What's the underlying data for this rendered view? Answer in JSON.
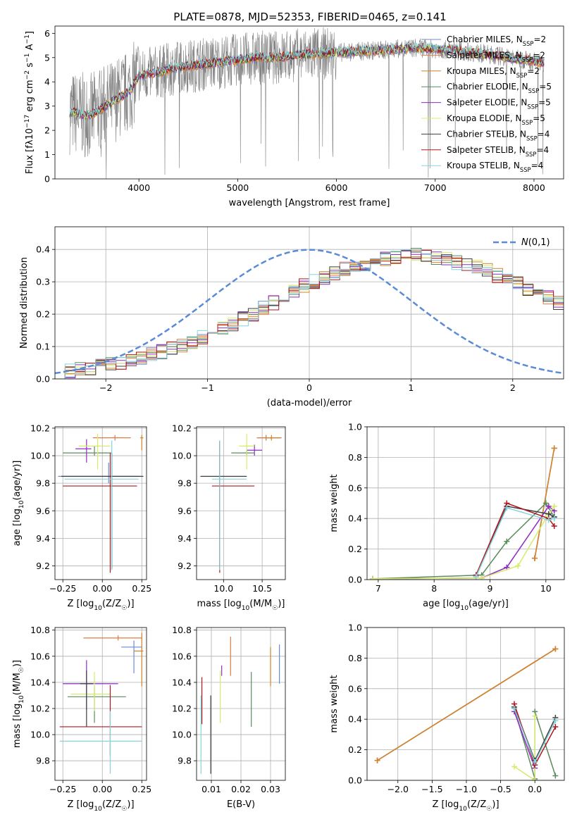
{
  "chart_data": [
    {
      "type": "line",
      "title": "PLATE=0878, MJD=52353, FIBERID=0465, z=0.141",
      "xlabel": "wavelength [Angstrom, rest frame]",
      "ylabel": "Flux [fλ10⁻¹⁷ erg cm⁻² s⁻¹ A⁻¹]",
      "xlim": [
        3150,
        8300
      ],
      "ylim": [
        0,
        6.3
      ],
      "xticks": [
        4000,
        5000,
        6000,
        7000,
        8000
      ],
      "yticks": [
        0,
        1,
        2,
        3,
        4,
        5,
        6
      ],
      "grid": false,
      "legend_position": "top-right",
      "data_range_x": [
        3300,
        8100
      ],
      "continuum_x": [
        3300,
        3500,
        3700,
        3900,
        4000,
        4200,
        4400,
        4600,
        4800,
        5000,
        5200,
        5400,
        5600,
        5800,
        6000,
        6200,
        6400,
        6600,
        6800,
        7000,
        7200,
        7400,
        7600,
        7800,
        8000,
        8100
      ],
      "continuum_y": [
        2.75,
        2.6,
        3.1,
        3.6,
        4.25,
        4.4,
        4.6,
        4.7,
        4.8,
        4.9,
        5.0,
        5.0,
        5.1,
        5.15,
        5.2,
        5.25,
        5.3,
        5.35,
        5.4,
        5.35,
        5.3,
        5.2,
        5.1,
        4.95,
        4.85,
        4.8
      ],
      "series": [
        {
          "name": "Chabrier MILES, N_SSP=2",
          "color": "#6a8bd4"
        },
        {
          "name": "Salpeter MILES, N_SSP=2",
          "color": "#e07b42"
        },
        {
          "name": "Kroupa MILES, N_SSP=2",
          "color": "#d2842a"
        },
        {
          "name": "Chabrier ELODIE, N_SSP=5",
          "color": "#5a8c5e"
        },
        {
          "name": "Salpeter ELODIE, N_SSP=5",
          "color": "#8e2cc2"
        },
        {
          "name": "Kroupa ELODIE, N_SSP=5",
          "color": "#d4ec6a"
        },
        {
          "name": "Chabrier STELIB, N_SSP=4",
          "color": "#3f3f3f"
        },
        {
          "name": "Salpeter STELIB, N_SSP=4",
          "color": "#b0171f"
        },
        {
          "name": "Kroupa STELIB, N_SSP=4",
          "color": "#86d4dc"
        }
      ],
      "data_color": "#808080",
      "legend_entries": [
        {
          "pre": "Chabrier MILES, N",
          "sub": "SSP",
          "post": "=2"
        },
        {
          "pre": "Salpeter MILES, N",
          "sub": "SSP",
          "post": "=2"
        },
        {
          "pre": "Kroupa MILES, N",
          "sub": "SSP",
          "post": "=2"
        },
        {
          "pre": "Chabrier ELODIE, N",
          "sub": "SSP",
          "post": "=5"
        },
        {
          "pre": "Salpeter ELODIE, N",
          "sub": "SSP",
          "post": "=5"
        },
        {
          "pre": "Kroupa ELODIE, N",
          "sub": "SSP",
          "post": "=5"
        },
        {
          "pre": "Chabrier STELIB, N",
          "sub": "SSP",
          "post": "=4"
        },
        {
          "pre": "Salpeter STELIB, N",
          "sub": "SSP",
          "post": "=4"
        },
        {
          "pre": "Kroupa STELIB, N",
          "sub": "SSP",
          "post": "=4"
        }
      ]
    },
    {
      "type": "histogram",
      "xlabel": "(data-model)/error",
      "ylabel": "Normed distribution",
      "xlim": [
        -2.5,
        2.5
      ],
      "ylim": [
        0,
        0.47
      ],
      "xticks": [
        -2,
        -1,
        0,
        1,
        2
      ],
      "yticks": [
        0.0,
        0.1,
        0.2,
        0.3,
        0.4
      ],
      "grid": true,
      "legend_position": "top-right",
      "reference_curve": {
        "name": "N(0,1)",
        "type": "gaussian",
        "mu": 0,
        "sigma": 1,
        "color": "#5b8bd6",
        "style": "dashed"
      },
      "bin_width": 0.1,
      "bin_start": -2.5,
      "template_heights": [
        0.02,
        0.025,
        0.03,
        0.035,
        0.04,
        0.045,
        0.05,
        0.06,
        0.065,
        0.075,
        0.085,
        0.095,
        0.105,
        0.115,
        0.13,
        0.145,
        0.16,
        0.17,
        0.185,
        0.2,
        0.22,
        0.235,
        0.25,
        0.27,
        0.29,
        0.3,
        0.31,
        0.325,
        0.34,
        0.35,
        0.355,
        0.365,
        0.37,
        0.375,
        0.38,
        0.385,
        0.38,
        0.375,
        0.37,
        0.36,
        0.355,
        0.345,
        0.335,
        0.32,
        0.31,
        0.295,
        0.28,
        0.265,
        0.25,
        0.235
      ]
    },
    {
      "type": "errorbar",
      "xlabel": "Z [log10(Z/Z☉)]",
      "ylabel": "age  [log10(age/yr)]",
      "xlim": [
        -0.3,
        0.28
      ],
      "ylim": [
        9.1,
        10.21
      ],
      "xticks": [
        -0.25,
        0.0,
        0.25
      ],
      "yticks": [
        9.2,
        9.4,
        9.6,
        9.8,
        10.0,
        10.2
      ],
      "grid": true,
      "points": [
        {
          "x": 0.04,
          "y": 9.85,
          "xerr": [
            0.32,
            0.2
          ],
          "yerr": [
            0.05,
            0.1
          ],
          "color": "#6a8bd4"
        },
        {
          "x": 0.08,
          "y": 10.13,
          "xerr": [
            0.14,
            0.1
          ],
          "yerr": [
            0.02,
            0.02
          ],
          "color": "#e07b42"
        },
        {
          "x": 0.25,
          "y": 10.13,
          "xerr": [
            0.01,
            0.01
          ],
          "yerr": [
            0.09,
            0.02
          ],
          "color": "#d2842a"
        },
        {
          "x": -0.05,
          "y": 10.02,
          "xerr": [
            0.2,
            0.11
          ],
          "yerr": [
            0.02,
            0.05
          ],
          "color": "#5a8c5e"
        },
        {
          "x": -0.1,
          "y": 10.05,
          "xerr": [
            0.07,
            0.03
          ],
          "yerr": [
            0.1,
            0.07
          ],
          "color": "#8e2cc2"
        },
        {
          "x": -0.03,
          "y": 10.07,
          "xerr": [
            0.12,
            0.08
          ],
          "yerr": [
            0.17,
            0.09
          ],
          "color": "#d4ec6a"
        },
        {
          "x": 0.06,
          "y": 9.85,
          "xerr": [
            0.32,
            0.2
          ],
          "yerr": [
            0.67,
            0.17
          ],
          "color": "#3f3f3f"
        },
        {
          "x": 0.05,
          "y": 9.78,
          "xerr": [
            0.3,
            0.17
          ],
          "yerr": [
            0.63,
            0.24
          ],
          "color": "#b0171f"
        },
        {
          "x": 0.06,
          "y": 9.83,
          "xerr": [
            0.3,
            0.17
          ],
          "yerr": [
            0.66,
            0.28
          ],
          "color": "#86d4dc"
        }
      ]
    },
    {
      "type": "errorbar",
      "xlabel": "mass [log10(M/M☉)]",
      "ylabel": "",
      "xlim": [
        9.65,
        10.8
      ],
      "ylim": [
        9.1,
        10.21
      ],
      "xticks": [
        10.0,
        10.5
      ],
      "yticks": [
        9.2,
        9.4,
        9.6,
        9.8,
        10.0,
        10.2
      ],
      "grid": true,
      "points": [
        {
          "x": 10.55,
          "y": 10.13,
          "xerr": [
            0.1,
            0.2
          ],
          "yerr": [
            0.02,
            0.02
          ],
          "color": "#6a8bd4"
        },
        {
          "x": 10.55,
          "y": 10.13,
          "xerr": [
            0.12,
            0.2
          ],
          "yerr": [
            0.02,
            0.02
          ],
          "color": "#e07b42"
        },
        {
          "x": 10.62,
          "y": 10.13,
          "xerr": [
            0.05,
            0.1
          ],
          "yerr": [
            0.02,
            0.02
          ],
          "color": "#d2842a"
        },
        {
          "x": 10.3,
          "y": 10.02,
          "xerr": [
            0.2,
            0.1
          ],
          "yerr": [
            0.02,
            0.02
          ],
          "color": "#5a8c5e"
        },
        {
          "x": 10.4,
          "y": 10.04,
          "xerr": [
            0.1,
            0.1
          ],
          "yerr": [
            0.04,
            0.04
          ],
          "color": "#8e2cc2"
        },
        {
          "x": 10.3,
          "y": 10.07,
          "xerr": [
            0.1,
            0.1
          ],
          "yerr": [
            0.17,
            0.09
          ],
          "color": "#d4ec6a"
        },
        {
          "x": 9.95,
          "y": 9.85,
          "xerr": [
            0.25,
            0.35
          ],
          "yerr": [
            0.67,
            0.25
          ],
          "color": "#3f3f3f"
        },
        {
          "x": 9.95,
          "y": 9.78,
          "xerr": [
            0.1,
            0.45
          ],
          "yerr": [
            0.63,
            0.33
          ],
          "color": "#b0171f"
        },
        {
          "x": 9.95,
          "y": 9.83,
          "xerr": [
            0.1,
            0.35
          ],
          "yerr": [
            0.66,
            0.28
          ],
          "color": "#86d4dc"
        }
      ]
    },
    {
      "type": "line",
      "xlabel": "age  [log10(age/yr)]",
      "ylabel": "mass weight",
      "xlim": [
        6.8,
        10.33
      ],
      "ylim": [
        0,
        1.0
      ],
      "xticks": [
        7,
        8,
        9,
        10
      ],
      "yticks": [
        0.0,
        0.2,
        0.4,
        0.6,
        0.8,
        1.0
      ],
      "grid": true,
      "series": [
        {
          "name": "Chabrier MILES",
          "color": "#6a8bd4",
          "x": [
            9.8,
            10.15
          ],
          "y": [
            0.14,
            0.86
          ]
        },
        {
          "name": "Salpeter MILES",
          "color": "#e07b42",
          "x": [
            9.8,
            10.15
          ],
          "y": [
            0.14,
            0.86
          ]
        },
        {
          "name": "Kroupa MILES",
          "color": "#d2842a",
          "x": [
            9.8,
            10.15
          ],
          "y": [
            0.14,
            0.86
          ]
        },
        {
          "name": "Chabrier ELODIE",
          "color": "#5a8c5e",
          "x": [
            6.9,
            8.85,
            9.3,
            10.0,
            10.15
          ],
          "y": [
            0.005,
            0.03,
            0.25,
            0.5,
            0.41
          ]
        },
        {
          "name": "Salpeter ELODIE",
          "color": "#8e2cc2",
          "x": [
            6.9,
            8.85,
            9.3,
            10.05,
            10.15
          ],
          "y": [
            0.005,
            0.01,
            0.08,
            0.48,
            0.45
          ]
        },
        {
          "name": "Kroupa ELODIE",
          "color": "#d4ec6a",
          "x": [
            6.9,
            8.85,
            9.5,
            10.0,
            10.15
          ],
          "y": [
            0.005,
            0.01,
            0.09,
            0.4,
            0.48
          ]
        },
        {
          "name": "Chabrier STELIB",
          "color": "#3f3f3f",
          "x": [
            8.75,
            9.3,
            10.05,
            10.15
          ],
          "y": [
            0.02,
            0.48,
            0.43,
            0.41
          ]
        },
        {
          "name": "Salpeter STELIB",
          "color": "#b0171f",
          "x": [
            8.75,
            9.3,
            10.05,
            10.15
          ],
          "y": [
            0.03,
            0.5,
            0.4,
            0.35
          ]
        },
        {
          "name": "Kroupa STELIB",
          "color": "#86d4dc",
          "x": [
            8.75,
            9.3,
            10.05,
            10.15
          ],
          "y": [
            0.02,
            0.47,
            0.39,
            0.4
          ]
        }
      ]
    },
    {
      "type": "errorbar",
      "xlabel": "Z [log10(Z/Z☉)]",
      "ylabel": "mass [log10(M/M☉)]",
      "xlim": [
        -0.3,
        0.28
      ],
      "ylim": [
        9.65,
        10.82
      ],
      "xticks": [
        -0.25,
        0.0,
        0.25
      ],
      "yticks": [
        9.8,
        10.0,
        10.2,
        10.4,
        10.6,
        10.8
      ],
      "grid": true,
      "points": [
        {
          "x": 0.2,
          "y": 10.67,
          "xerr": [
            0.08,
            0.05
          ],
          "yerr": [
            0.2,
            0.05
          ],
          "color": "#6a8bd4"
        },
        {
          "x": 0.1,
          "y": 10.74,
          "xerr": [
            0.22,
            0.15
          ],
          "yerr": [
            0.02,
            0.02
          ],
          "color": "#e07b42"
        },
        {
          "x": 0.25,
          "y": 10.64,
          "xerr": [
            0.05,
            0.01
          ],
          "yerr": [
            0.27,
            0.14
          ],
          "color": "#d2842a"
        },
        {
          "x": -0.05,
          "y": 10.29,
          "xerr": [
            0.17,
            0.2
          ],
          "yerr": [
            0.2,
            0.07
          ],
          "color": "#5a8c5e"
        },
        {
          "x": -0.1,
          "y": 10.39,
          "xerr": [
            0.15,
            0.2
          ],
          "yerr": [
            0.2,
            0.18
          ],
          "color": "#8e2cc2"
        },
        {
          "x": -0.05,
          "y": 10.31,
          "xerr": [
            0.15,
            0.1
          ],
          "yerr": [
            0.13,
            0.17
          ],
          "color": "#d4ec6a"
        },
        {
          "x": -0.1,
          "y": 10.39,
          "xerr": [
            0.04,
            0.04
          ],
          "yerr": [
            0.33,
            0.1
          ],
          "color": "#3f3f3f"
        },
        {
          "x": 0.05,
          "y": 10.06,
          "xerr": [
            0.32,
            0.2
          ],
          "yerr": [
            0.22,
            0.32
          ],
          "color": "#b0171f"
        },
        {
          "x": 0.05,
          "y": 9.95,
          "xerr": [
            0.32,
            0.2
          ],
          "yerr": [
            0.25,
            0.23
          ],
          "color": "#86d4dc"
        }
      ]
    },
    {
      "type": "errorbar",
      "xlabel": "E(B-V)",
      "ylabel": "",
      "xlim": [
        0.005,
        0.035
      ],
      "ylim": [
        9.65,
        10.82
      ],
      "xticks": [
        0.01,
        0.02,
        0.03
      ],
      "yticks": [
        9.8,
        10.0,
        10.2,
        10.4,
        10.6,
        10.8
      ],
      "grid": true,
      "points": [
        {
          "x": 0.033,
          "y": 10.54,
          "yerr": [
            0.15,
            0.15
          ],
          "color": "#6a8bd4"
        },
        {
          "x": 0.0165,
          "y": 10.6,
          "yerr": [
            0.15,
            0.15
          ],
          "color": "#e07b42"
        },
        {
          "x": 0.03,
          "y": 10.52,
          "yerr": [
            0.15,
            0.15
          ],
          "color": "#d2842a"
        },
        {
          "x": 0.0235,
          "y": 10.27,
          "yerr": [
            0.21,
            0.21
          ],
          "color": "#5a8c5e"
        },
        {
          "x": 0.0135,
          "y": 10.49,
          "yerr": [
            0.04,
            0.04
          ],
          "color": "#8e2cc2"
        },
        {
          "x": 0.013,
          "y": 10.29,
          "yerr": [
            0.2,
            0.2
          ],
          "color": "#d4ec6a"
        },
        {
          "x": 0.0098,
          "y": 10.0,
          "yerr": [
            0.3,
            0.3
          ],
          "color": "#3f3f3f"
        },
        {
          "x": 0.0068,
          "y": 10.26,
          "yerr": [
            0.18,
            0.18
          ],
          "color": "#b0171f"
        },
        {
          "x": 0.0065,
          "y": 10.0,
          "yerr": [
            0.3,
            0.3
          ],
          "color": "#86d4dc"
        }
      ]
    },
    {
      "type": "line",
      "xlabel": "Z [log10(Z/Z☉)]",
      "ylabel": "mass weight",
      "xlim": [
        -2.45,
        0.43
      ],
      "ylim": [
        0,
        1.0
      ],
      "xticks": [
        -2.0,
        -1.5,
        -1.0,
        -0.5,
        0.0
      ],
      "yticks": [
        0.0,
        0.2,
        0.4,
        0.6,
        0.8,
        1.0
      ],
      "grid": true,
      "series": [
        {
          "name": "Chabrier MILES",
          "color": "#6a8bd4",
          "x": [
            -2.3,
            0.3
          ],
          "y": [
            0.13,
            0.86
          ]
        },
        {
          "name": "Salpeter MILES",
          "color": "#e07b42",
          "x": [
            -2.3,
            0.3
          ],
          "y": [
            0.13,
            0.86
          ]
        },
        {
          "name": "Kroupa MILES",
          "color": "#d2842a",
          "x": [
            -2.3,
            0.3
          ],
          "y": [
            0.13,
            0.86
          ]
        },
        {
          "name": "Chabrier ELODIE",
          "color": "#5a8c5e",
          "x": [
            -0.3,
            0.0,
            0.0,
            0.3
          ],
          "y": [
            0.47,
            0.01,
            0.45,
            0.03
          ]
        },
        {
          "name": "Salpeter ELODIE",
          "color": "#8e2cc2",
          "x": [
            -0.3,
            0.0,
            0.0
          ],
          "y": [
            0.45,
            0.08,
            0.0
          ]
        },
        {
          "name": "Kroupa ELODIE",
          "color": "#d4ec6a",
          "x": [
            -0.3,
            0.0,
            0.0
          ],
          "y": [
            0.09,
            0.0,
            0.42
          ]
        },
        {
          "name": "Chabrier STELIB",
          "color": "#3f3f3f",
          "x": [
            -0.3,
            0.0,
            0.3
          ],
          "y": [
            0.48,
            0.13,
            0.41
          ]
        },
        {
          "name": "Salpeter STELIB",
          "color": "#b0171f",
          "x": [
            -0.3,
            0.0,
            0.3
          ],
          "y": [
            0.5,
            0.1,
            0.35
          ]
        },
        {
          "name": "Kroupa STELIB",
          "color": "#86d4dc",
          "x": [
            -0.3,
            0.0,
            0.3
          ],
          "y": [
            0.47,
            0.12,
            0.39
          ]
        }
      ]
    }
  ]
}
